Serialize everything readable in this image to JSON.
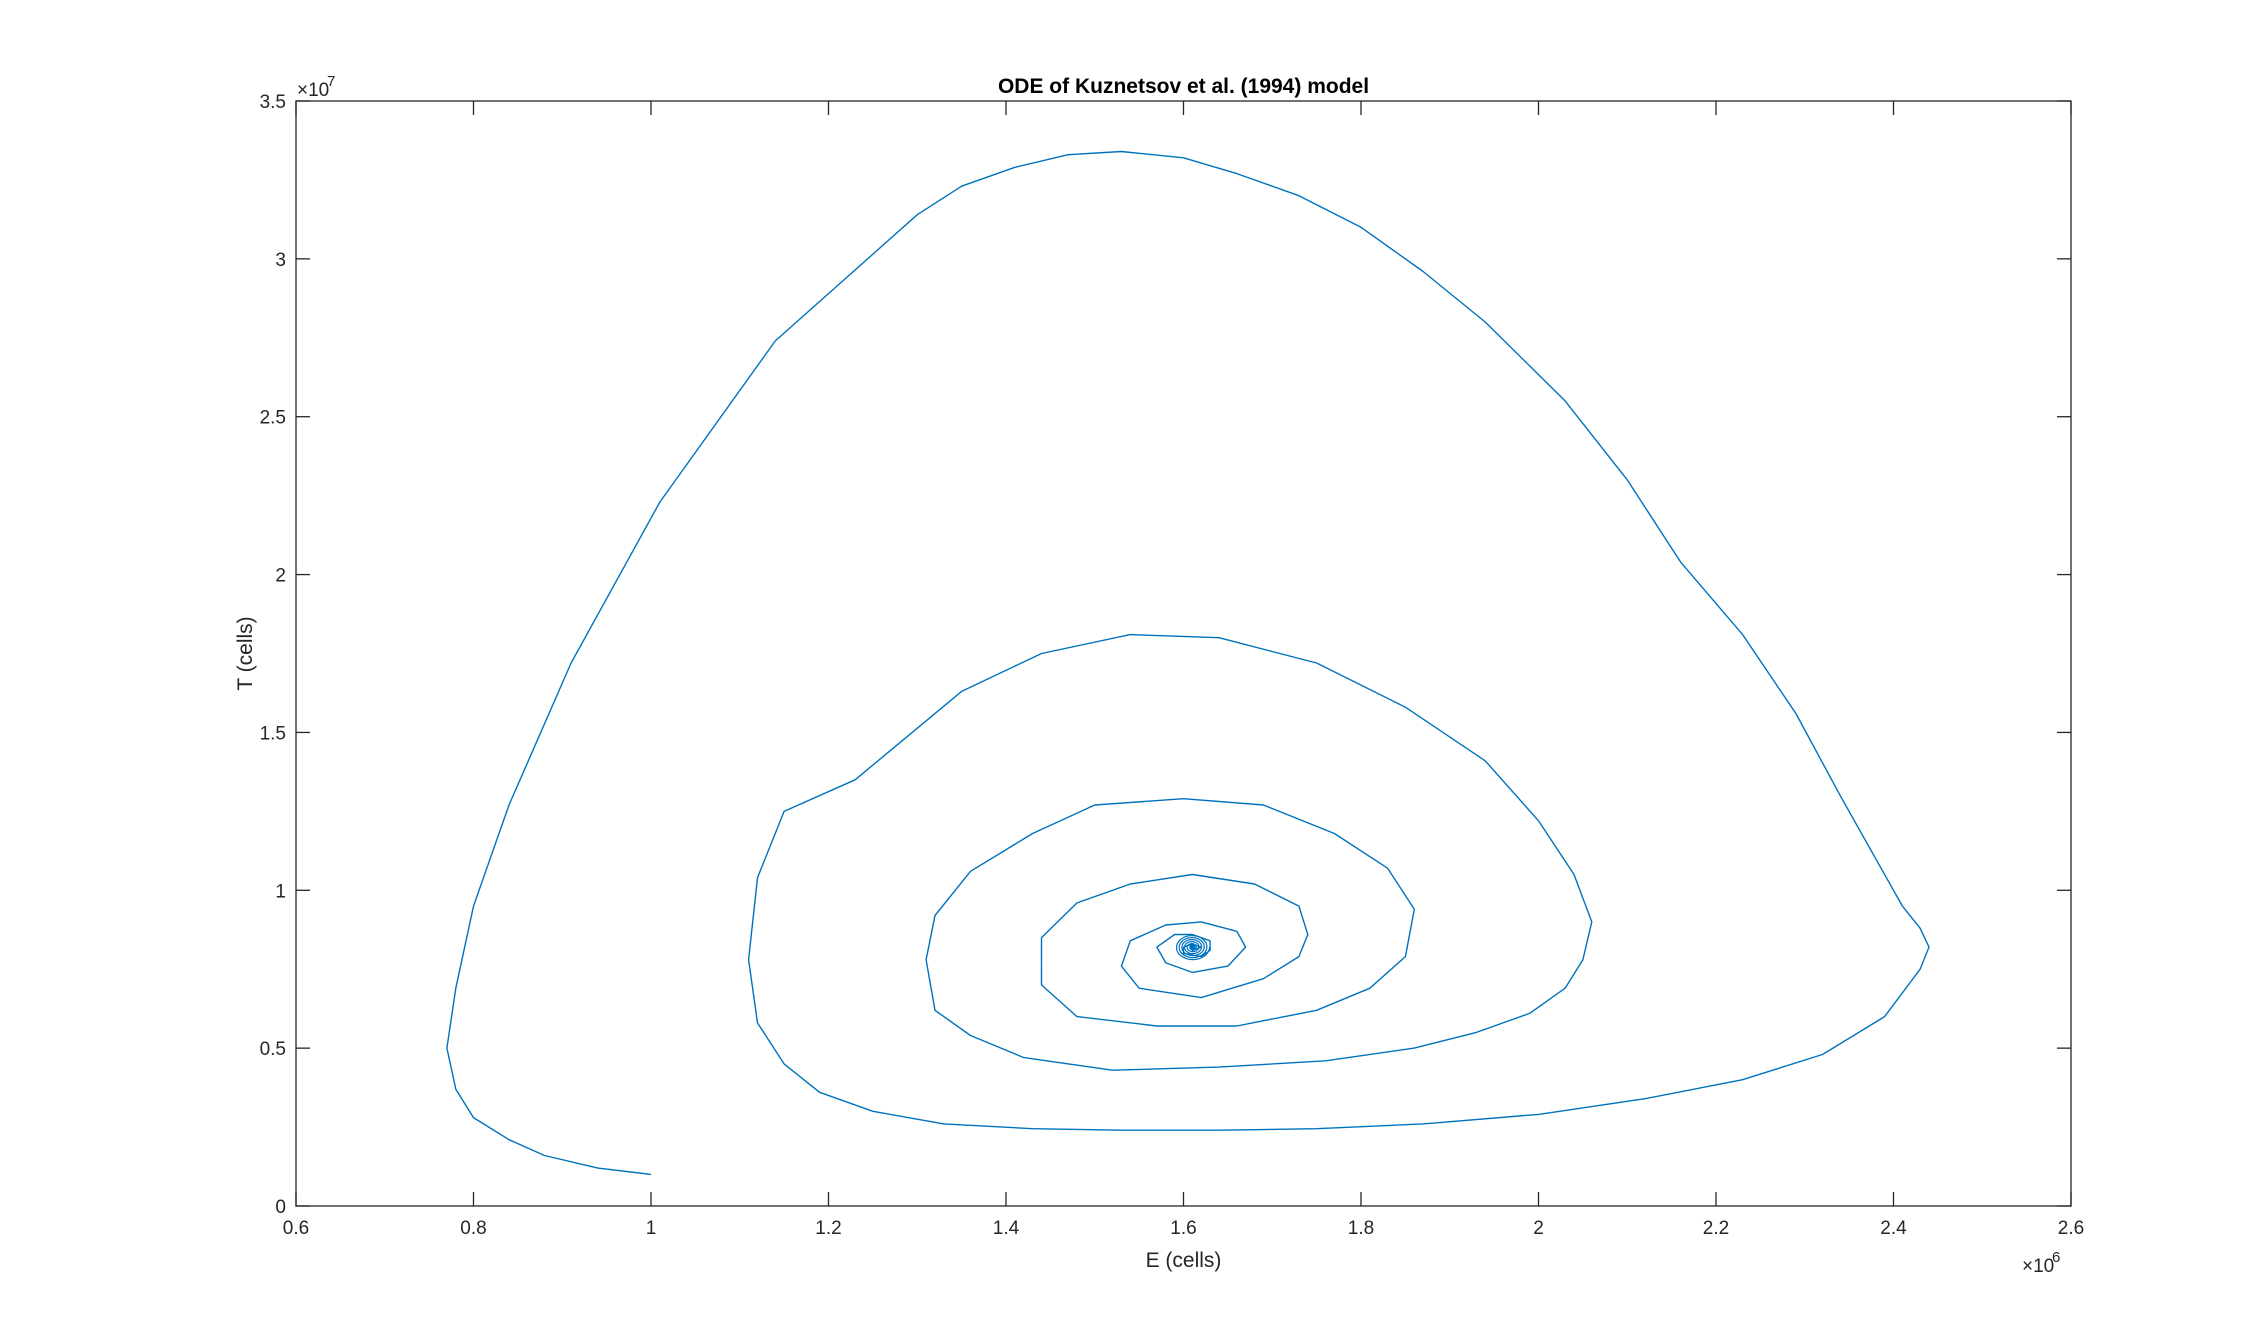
{
  "figure": {
    "background": "#ffffff"
  },
  "chart_data": {
    "type": "line",
    "title": "ODE of Kuznetsov et al. (1994) model",
    "xlabel": "E (cells)",
    "ylabel": "T (cells)",
    "xlim": [
      0.6,
      2.6
    ],
    "ylim": [
      0,
      3.5
    ],
    "x_multiplier_label": "×10",
    "x_multiplier_exp": "6",
    "y_multiplier_label": "×10",
    "y_multiplier_exp": "7",
    "x_ticks": [
      0.6,
      0.8,
      1,
      1.2,
      1.4,
      1.6,
      1.8,
      2,
      2.2,
      2.4,
      2.6
    ],
    "x_tick_labels": [
      "0.6",
      "0.8",
      "1",
      "1.2",
      "1.4",
      "1.6",
      "1.8",
      "2",
      "2.2",
      "2.4",
      "2.6"
    ],
    "y_ticks": [
      0,
      0.5,
      1,
      1.5,
      2,
      2.5,
      3,
      3.5
    ],
    "y_tick_labels": [
      "0",
      "0.5",
      "1",
      "1.5",
      "2",
      "2.5",
      "3",
      "3.5"
    ],
    "grid": false,
    "box": true,
    "line_color": "#0072bd",
    "axes_color": "#262626",
    "equilibrium": {
      "x": 1.61,
      "y": 0.82
    },
    "series": [
      {
        "x": [
          1.0,
          0.94,
          0.88,
          0.84,
          0.8,
          0.78,
          0.77,
          0.78,
          0.8,
          0.84,
          0.91,
          1.01,
          1.14,
          1.3,
          1.35,
          1.41,
          1.47,
          1.53,
          1.6,
          1.66,
          1.73,
          1.8,
          1.87,
          1.94,
          2.03,
          2.1,
          2.16,
          2.23,
          2.29,
          2.34,
          2.38,
          2.41,
          2.43,
          2.44,
          2.43,
          2.39,
          2.32,
          2.23,
          2.12,
          2.0,
          1.87,
          1.75,
          1.64,
          1.53,
          1.43,
          1.33,
          1.25,
          1.19,
          1.15,
          1.12,
          1.11,
          1.12,
          1.15,
          1.23,
          1.35,
          1.44,
          1.54,
          1.64,
          1.75,
          1.85,
          1.94,
          2.0,
          2.04,
          2.06,
          2.05,
          2.03,
          1.99,
          1.93,
          1.86,
          1.76,
          1.64,
          1.52,
          1.42,
          1.36,
          1.32,
          1.31,
          1.32,
          1.36,
          1.43,
          1.5,
          1.6,
          1.69,
          1.77,
          1.83,
          1.86,
          1.85,
          1.81,
          1.75,
          1.66,
          1.57,
          1.48,
          1.44,
          1.44,
          1.48,
          1.54,
          1.61,
          1.68,
          1.73,
          1.74,
          1.73,
          1.69,
          1.62,
          1.55,
          1.53,
          1.54,
          1.58,
          1.62,
          1.66,
          1.67,
          1.65,
          1.61,
          1.58,
          1.57,
          1.59,
          1.61,
          1.63,
          1.63,
          1.62,
          1.6,
          1.6,
          1.61,
          1.62,
          1.61,
          1.61
        ],
        "y": [
          0.1,
          0.12,
          0.16,
          0.21,
          0.28,
          0.37,
          0.5,
          0.69,
          0.95,
          1.27,
          1.72,
          2.23,
          2.74,
          3.14,
          3.23,
          3.29,
          3.33,
          3.34,
          3.32,
          3.27,
          3.2,
          3.1,
          2.96,
          2.8,
          2.55,
          2.3,
          2.04,
          1.81,
          1.56,
          1.3,
          1.1,
          0.95,
          0.88,
          0.82,
          0.75,
          0.6,
          0.48,
          0.4,
          0.34,
          0.29,
          0.26,
          0.245,
          0.24,
          0.24,
          0.245,
          0.26,
          0.3,
          0.36,
          0.45,
          0.58,
          0.78,
          1.04,
          1.25,
          1.35,
          1.63,
          1.75,
          1.81,
          1.8,
          1.72,
          1.58,
          1.41,
          1.22,
          1.05,
          0.9,
          0.78,
          0.69,
          0.61,
          0.55,
          0.5,
          0.46,
          0.44,
          0.43,
          0.47,
          0.54,
          0.62,
          0.78,
          0.92,
          1.06,
          1.18,
          1.27,
          1.29,
          1.27,
          1.18,
          1.07,
          0.94,
          0.79,
          0.69,
          0.62,
          0.57,
          0.57,
          0.6,
          0.7,
          0.85,
          0.96,
          1.02,
          1.05,
          1.02,
          0.95,
          0.86,
          0.79,
          0.72,
          0.66,
          0.69,
          0.76,
          0.84,
          0.89,
          0.9,
          0.87,
          0.82,
          0.76,
          0.74,
          0.77,
          0.82,
          0.86,
          0.86,
          0.84,
          0.81,
          0.79,
          0.8,
          0.82,
          0.83,
          0.82,
          0.81,
          0.82
        ]
      }
    ]
  }
}
